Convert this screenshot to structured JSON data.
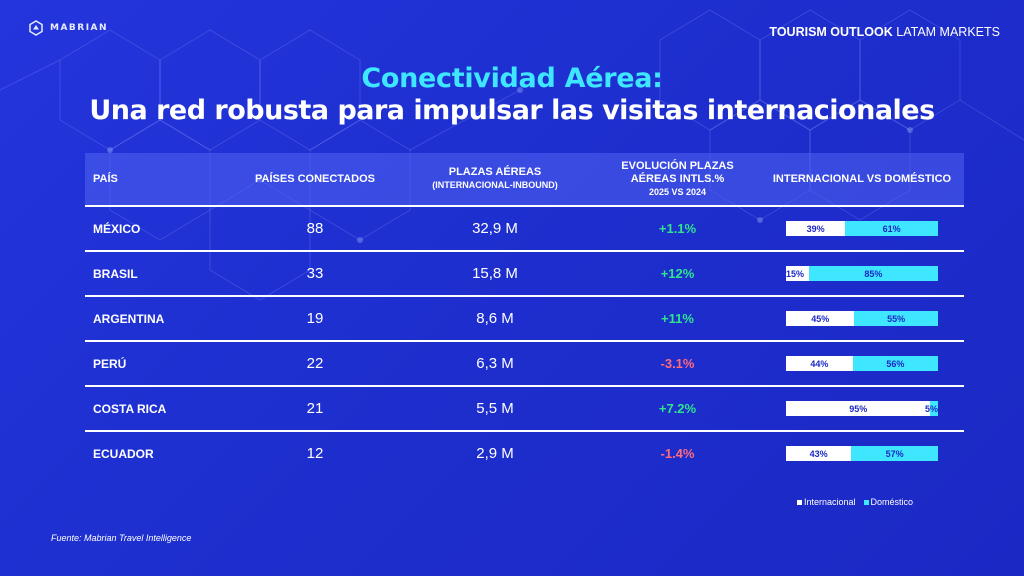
{
  "brand": {
    "logo_text": "MABRIAN"
  },
  "header": {
    "title_strong": "TOURISM OUTLOOK",
    "title_rest": " LATAM MARKETS"
  },
  "title": {
    "line1": "Conectividad Aérea:",
    "line2": "Una red robusta para impulsar las visitas internacionales"
  },
  "table": {
    "headers": {
      "pais": "PAÍS",
      "conectados": "PAÍSES CONECTADOS",
      "plazas": "PLAZAS AÉREAS",
      "plazas_sub": "(INTERNACIONAL-INBOUND)",
      "evolucion_l1": "EVOLUCIÓN PLAZAS",
      "evolucion_l2": "AÉREAS INTLS.%",
      "evolucion_l3": "2025 VS 2024",
      "comparativa": "INTERNACIONAL VS DOMÉSTICO"
    },
    "rows": [
      {
        "pais": "MÉXICO",
        "conectados": "88",
        "plazas": "32,9 M",
        "evolucion": "+1.1%",
        "trend": "pos",
        "intl_label": "39%",
        "dom_label": "61%",
        "intl_pct": 39
      },
      {
        "pais": "BRASIL",
        "conectados": "33",
        "plazas": "15,8 M",
        "evolucion": "+12%",
        "trend": "pos",
        "intl_label": "15%",
        "dom_label": "85%",
        "intl_pct": 15
      },
      {
        "pais": "ARGENTINA",
        "conectados": "19",
        "plazas": "8,6 M",
        "evolucion": "+11%",
        "trend": "pos",
        "intl_label": "45%",
        "dom_label": "55%",
        "intl_pct": 45
      },
      {
        "pais": "PERÚ",
        "conectados": "22",
        "plazas": "6,3 M",
        "evolucion": "-3.1%",
        "trend": "neg",
        "intl_label": "44%",
        "dom_label": "56%",
        "intl_pct": 44
      },
      {
        "pais": "COSTA RICA",
        "conectados": "21",
        "plazas": "5,5 M",
        "evolucion": "+7.2%",
        "trend": "pos",
        "intl_label": "95%",
        "dom_label": "5%",
        "intl_pct": 95
      },
      {
        "pais": "ECUADOR",
        "conectados": "12",
        "plazas": "2,9 M",
        "evolucion": "-1.4%",
        "trend": "neg",
        "intl_label": "43%",
        "dom_label": "57%",
        "intl_pct": 43
      }
    ]
  },
  "legend": {
    "internacional": "Internacional",
    "domestico": "Doméstico"
  },
  "colors": {
    "background": "#1f2fd6",
    "accent_cyan": "#3ee6ff",
    "positive": "#2ee58e",
    "negative": "#ff6b7e",
    "intl_bar": "#ffffff",
    "dom_bar": "#3ee6ff"
  },
  "footer": {
    "source": "Fuente: Mabrian Travel Intelligence"
  }
}
